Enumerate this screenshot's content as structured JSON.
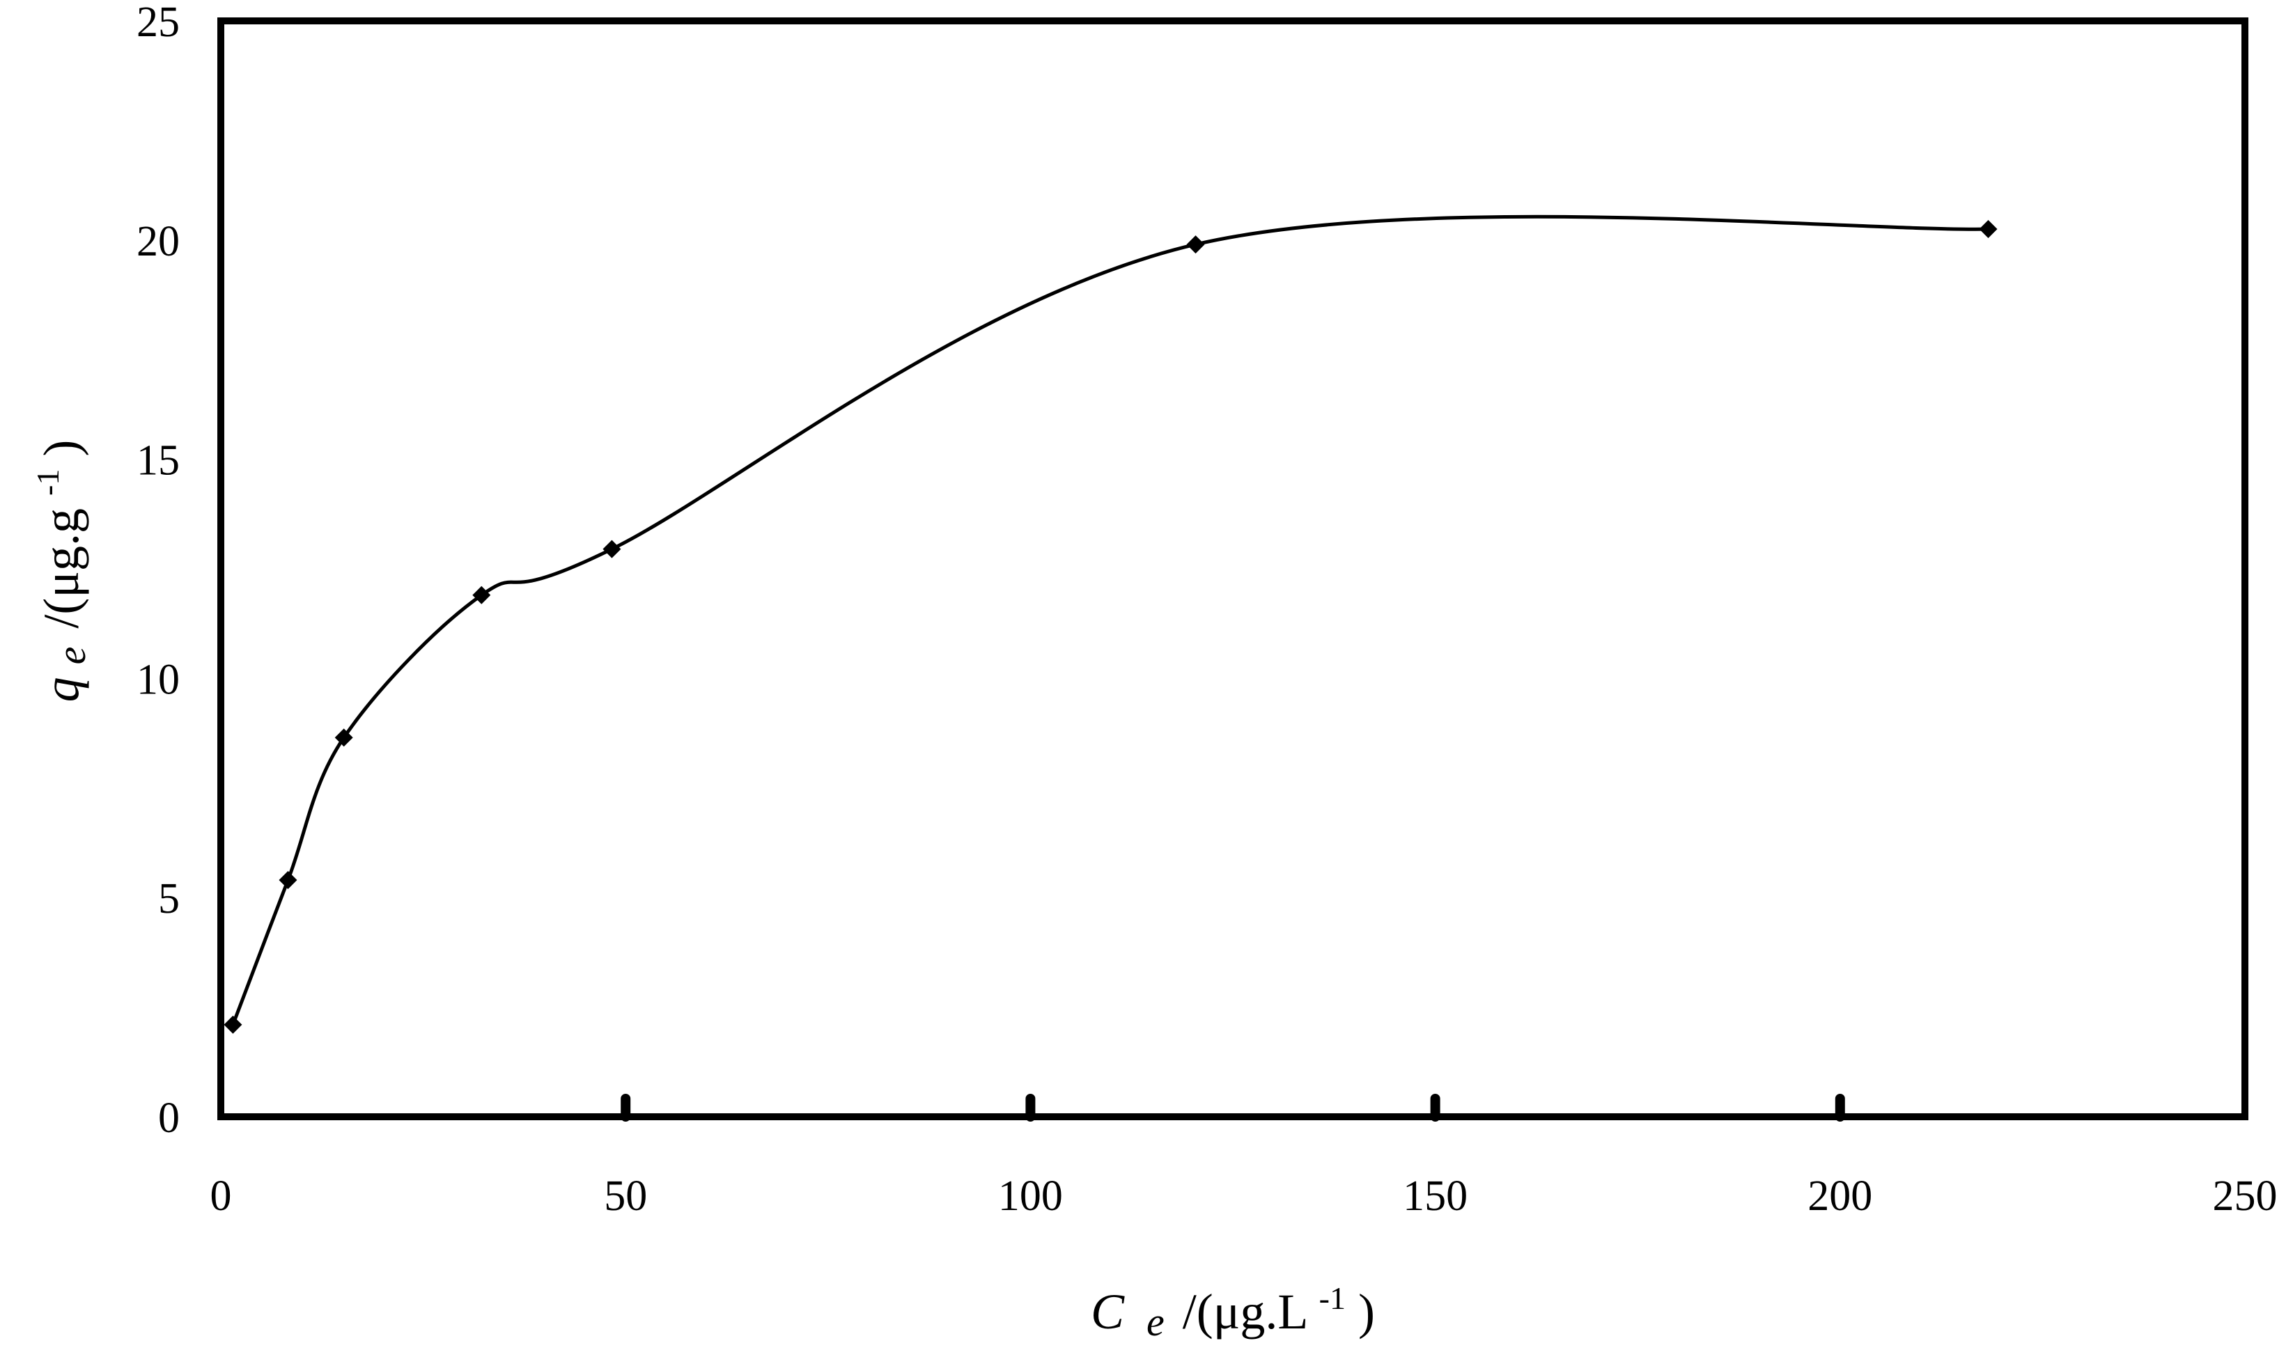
{
  "chart_data": {
    "type": "scatter",
    "title": "",
    "xlabel": {
      "symbol": "C",
      "subscript": "e",
      "unit_prefix": "/(μg.L",
      "exponent": "-1",
      "unit_suffix": ")"
    },
    "ylabel": {
      "symbol": "q",
      "subscript": "e",
      "unit_prefix": "/(μg.g",
      "exponent": "-1",
      "unit_suffix": ")"
    },
    "xlim": [
      0,
      250
    ],
    "ylim": [
      0,
      25
    ],
    "x_ticks": [
      0,
      50,
      100,
      150,
      200,
      250
    ],
    "y_ticks": [
      0,
      5,
      10,
      15,
      20,
      25
    ],
    "x_tick_labels": [
      "0",
      "50",
      "100",
      "150",
      "200",
      "250"
    ],
    "y_tick_labels": [
      "0",
      "5",
      "10",
      "15",
      "20",
      "25"
    ],
    "grid": false,
    "legend": "none",
    "line": "smooth",
    "marker": "diamond",
    "color": "#000000",
    "series": [
      {
        "x": [
          1.5,
          8.3,
          15.2,
          32.2,
          48.3,
          120.4,
          218.3
        ],
        "y": [
          2.1,
          5.4,
          8.65,
          11.9,
          12.95,
          19.9,
          20.25
        ]
      }
    ]
  }
}
